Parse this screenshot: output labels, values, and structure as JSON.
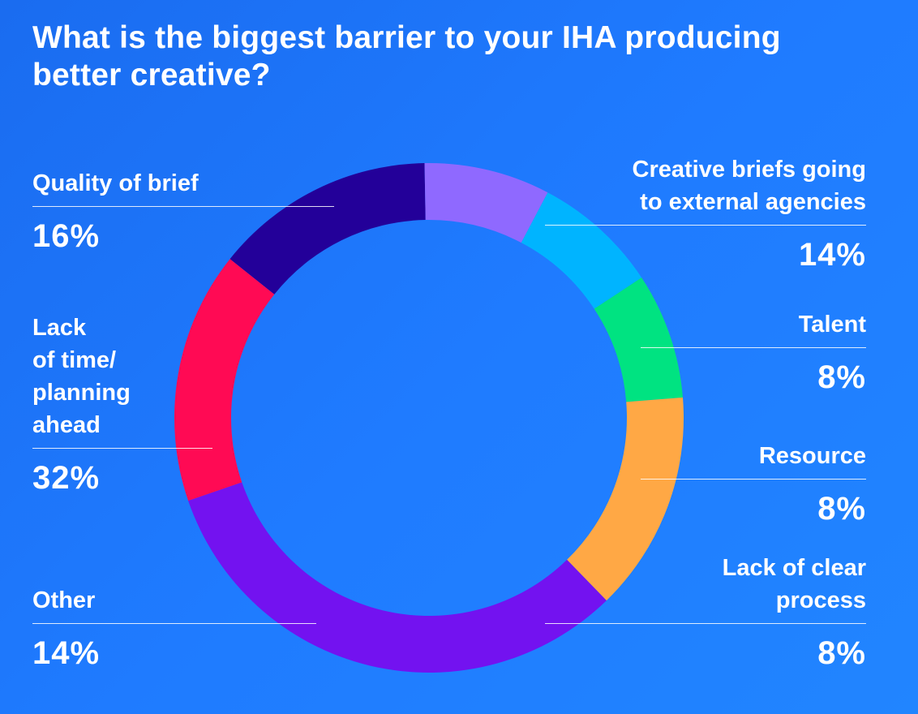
{
  "title": "What is the biggest barrier to your IHA producing better creative?",
  "chart_data": {
    "type": "pie",
    "title": "What is the biggest barrier to your IHA producing better creative?",
    "donut": true,
    "unit": "%",
    "slices": [
      {
        "label": "Quality of brief",
        "value": 16,
        "display": "16%",
        "color": "#ff0a54"
      },
      {
        "label": "Creative briefs going\nto external agencies",
        "value": 14,
        "display": "14%",
        "color": "#230099"
      },
      {
        "label": "Talent",
        "value": 8,
        "display": "8%",
        "color": "#8f69ff"
      },
      {
        "label": "Resource",
        "value": 8,
        "display": "8%",
        "color": "#00b4ff"
      },
      {
        "label": "Lack of clear\nprocess",
        "value": 8,
        "display": "8%",
        "color": "#00e381"
      },
      {
        "label": "Other",
        "value": 14,
        "display": "14%",
        "color": "#ffa845"
      },
      {
        "label": "Lack\nof time/\nplanning\nahead",
        "value": 32,
        "display": "32%",
        "color": "#7312f0"
      }
    ]
  }
}
